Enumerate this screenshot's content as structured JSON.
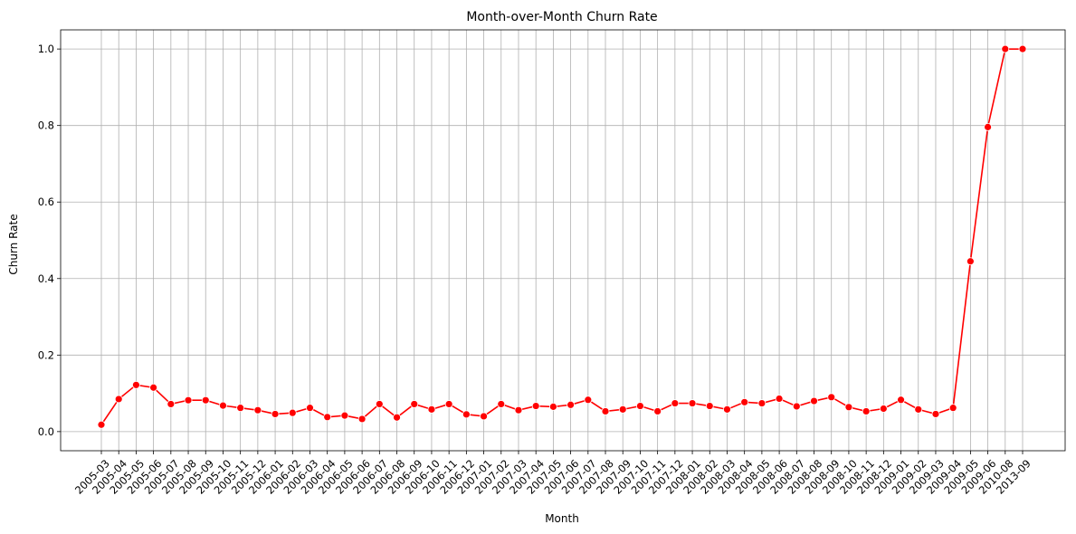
{
  "chart_data": {
    "type": "line",
    "title": "Month-over-Month Churn Rate",
    "xlabel": "Month",
    "ylabel": "Churn Rate",
    "ylim": [
      -0.05,
      1.05
    ],
    "yticks": [
      0.0,
      0.2,
      0.4,
      0.6,
      0.8,
      1.0
    ],
    "ytick_labels": [
      "0.0",
      "0.2",
      "0.4",
      "0.6",
      "0.8",
      "1.0"
    ],
    "grid": true,
    "legend": "none",
    "categories": [
      "2005-03",
      "2005-04",
      "2005-05",
      "2005-06",
      "2005-07",
      "2005-08",
      "2005-09",
      "2005-10",
      "2005-11",
      "2005-12",
      "2006-01",
      "2006-02",
      "2006-03",
      "2006-04",
      "2006-05",
      "2006-06",
      "2006-07",
      "2006-08",
      "2006-09",
      "2006-10",
      "2006-11",
      "2006-12",
      "2007-01",
      "2007-02",
      "2007-03",
      "2007-04",
      "2007-05",
      "2007-06",
      "2007-07",
      "2007-08",
      "2007-09",
      "2007-10",
      "2007-11",
      "2007-12",
      "2008-01",
      "2008-02",
      "2008-03",
      "2008-04",
      "2008-05",
      "2008-06",
      "2008-07",
      "2008-08",
      "2008-09",
      "2008-10",
      "2008-11",
      "2008-12",
      "2009-01",
      "2009-02",
      "2009-03",
      "2009-04",
      "2009-05",
      "2009-06",
      "2010-08",
      "2013-09"
    ],
    "series": [
      {
        "color": "#ff0000",
        "values": [
          0.018,
          0.085,
          0.122,
          0.115,
          0.072,
          0.082,
          0.082,
          0.068,
          0.062,
          0.056,
          0.046,
          0.049,
          0.062,
          0.038,
          0.042,
          0.033,
          0.072,
          0.037,
          0.072,
          0.058,
          0.072,
          0.045,
          0.04,
          0.072,
          0.056,
          0.067,
          0.065,
          0.07,
          0.083,
          0.053,
          0.058,
          0.067,
          0.053,
          0.074,
          0.074,
          0.067,
          0.058,
          0.077,
          0.074,
          0.086,
          0.066,
          0.08,
          0.09,
          0.064,
          0.053,
          0.06,
          0.083,
          0.058,
          0.046,
          0.062,
          0.445,
          0.796,
          1.0,
          1.0
        ]
      }
    ]
  }
}
